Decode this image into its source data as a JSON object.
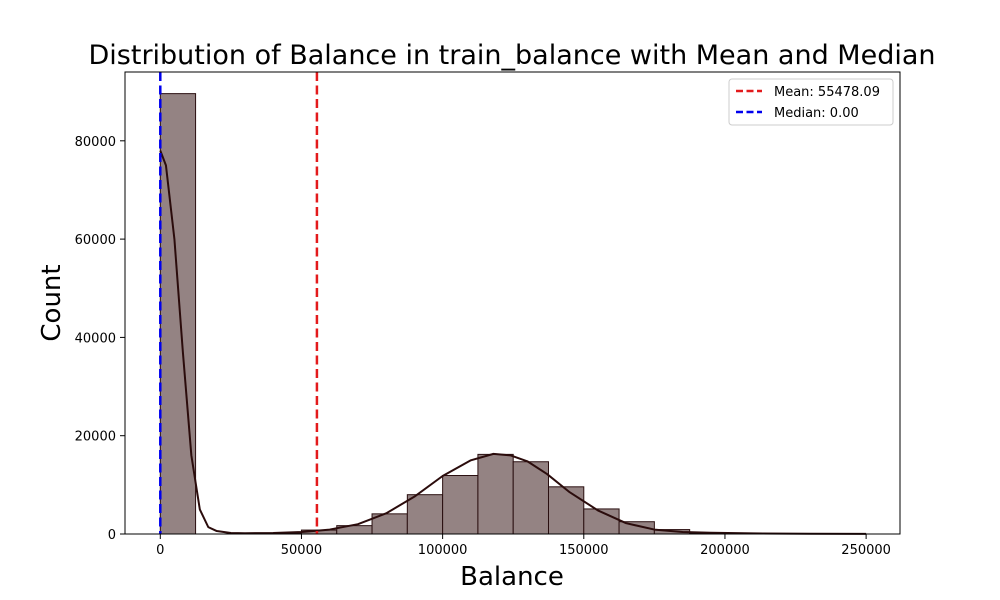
{
  "colors": {
    "bar_fill": "#948383",
    "bar_stroke": "#2a0f10",
    "kde": "#2b0c0c",
    "mean_line": "#e31a1c",
    "median_line": "#0000ee"
  },
  "chart_data": {
    "type": "bar",
    "title": "Distribution of Balance in train_balance with Mean and Median",
    "xlabel": "Balance",
    "ylabel": "Count",
    "xlim": [
      -12500,
      262000
    ],
    "ylim": [
      0,
      94000
    ],
    "xticks": [
      0,
      50000,
      100000,
      150000,
      200000,
      250000
    ],
    "yticks": [
      0,
      20000,
      40000,
      60000,
      80000
    ],
    "grid": false,
    "legend_position": "top-right",
    "bin_width": 12500,
    "bins": [
      {
        "x0": 0,
        "count": 89600
      },
      {
        "x0": 12500,
        "count": 0
      },
      {
        "x0": 25000,
        "count": 0
      },
      {
        "x0": 37500,
        "count": 100
      },
      {
        "x0": 50000,
        "count": 800
      },
      {
        "x0": 62500,
        "count": 1700
      },
      {
        "x0": 75000,
        "count": 4100
      },
      {
        "x0": 87500,
        "count": 8000
      },
      {
        "x0": 100000,
        "count": 11900
      },
      {
        "x0": 112500,
        "count": 16200
      },
      {
        "x0": 125000,
        "count": 14700
      },
      {
        "x0": 137500,
        "count": 9600
      },
      {
        "x0": 150000,
        "count": 5100
      },
      {
        "x0": 162500,
        "count": 2500
      },
      {
        "x0": 175000,
        "count": 900
      },
      {
        "x0": 187500,
        "count": 200
      },
      {
        "x0": 200000,
        "count": 100
      },
      {
        "x0": 212500,
        "count": 0
      },
      {
        "x0": 225000,
        "count": 0
      },
      {
        "x0": 237500,
        "count": 0
      }
    ],
    "kde": {
      "x": [
        0,
        2000,
        5000,
        8000,
        11000,
        14000,
        17000,
        20000,
        25000,
        30000,
        40000,
        50000,
        60000,
        70000,
        80000,
        90000,
        100000,
        110000,
        118000,
        124000,
        130000,
        137000,
        145000,
        155000,
        165000,
        175000,
        185000,
        195000,
        210000,
        230000,
        250000
      ],
      "y": [
        78000,
        75000,
        60000,
        37000,
        16000,
        5000,
        1400,
        600,
        200,
        150,
        200,
        400,
        900,
        2000,
        4200,
        7600,
        11800,
        15000,
        16300,
        16000,
        14800,
        12200,
        8500,
        4800,
        2200,
        900,
        400,
        250,
        120,
        60,
        20
      ]
    },
    "reference_lines": [
      {
        "name": "Mean: 55478.09",
        "value": 55478.09,
        "color": "#e31a1c"
      },
      {
        "name": "Median: 0.00",
        "value": 0.0,
        "color": "#0000ee"
      }
    ]
  }
}
